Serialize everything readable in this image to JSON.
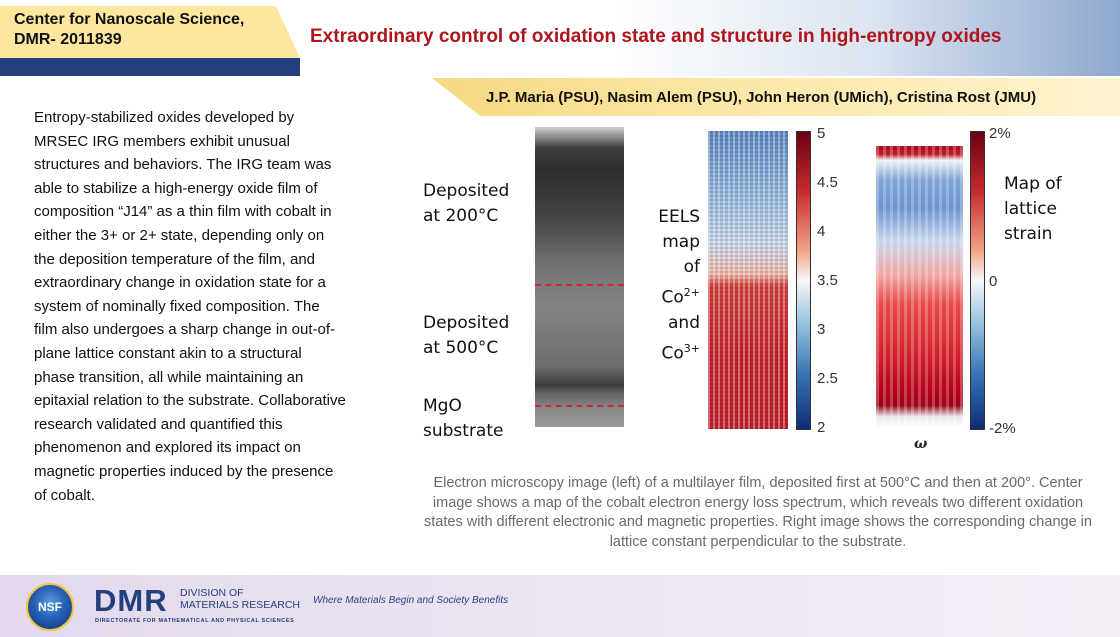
{
  "header": {
    "center_name": "Center for Nanoscale Science, DMR- 2011839",
    "title": "Extraordinary control of oxidation state and structure in high-entropy oxides",
    "authors": "J.P. Maria (PSU), Nasim Alem (PSU), John Heron (UMich), Cristina Rost (JMU)"
  },
  "body_text": "Entropy-stabilized oxides developed by MRSEC IRG members exhibit unusual structures and behaviors.  The IRG team was able to stabilize a high-energy oxide film of composition “J14” as a thin film with cobalt in either the 3+ or 2+ state, depending only on the deposition temperature of the film, and extraordinary change in oxidation state for a system of nominally fixed composition. The film also undergoes a sharp change in out-of-plane lattice constant akin to a structural phase transition, all while maintaining an epitaxial relation to the substrate.  Collaborative research validated and quantified this phenomenon and explored its impact on magnetic properties induced by the presence of cobalt.",
  "figure": {
    "stem_labels": {
      "dep200_line1": "Deposited",
      "dep200_line2": "at 200°C",
      "dep500_line1": "Deposited",
      "dep500_line2": "at 500°C",
      "mgo_line1": "MgO",
      "mgo_line2": "substrate"
    },
    "eels_label": {
      "l1": "EELS",
      "l2": "map",
      "l3": "of",
      "co": "Co",
      "co2_sup": "2+",
      "and": "and",
      "co3_sup": "3+"
    },
    "eels_colorbar_ticks": [
      "5",
      "4.5",
      "4",
      "3.5",
      "3",
      "2.5",
      "2"
    ],
    "strain_label": {
      "l1": "Map of",
      "l2": "lattice",
      "l3": "strain"
    },
    "strain_colorbar_ticks": {
      "top": "2%",
      "mid": "0",
      "bottom": "-2%"
    },
    "strain_axis_symbol": "ω",
    "colormap": {
      "high": "#b2182b",
      "mid": "#f7f7f7",
      "low": "#2166ac"
    }
  },
  "caption": "Electron microscopy image (left) of a multilayer film, deposited first at 500°C and then at 200°. Center image shows a map of the cobalt electron energy loss spectrum, which reveals two different oxidation states with different electronic and magnetic properties. Right image shows the corresponding change in lattice constant perpendicular to the substrate.",
  "footer": {
    "nsf_logo_text": "NSF",
    "dmr_mark": "DMR",
    "dmr_division_line1": "DIVISION OF",
    "dmr_division_line2": "MATERIALS RESEARCH",
    "dmr_directorate": "DIRECTORATE FOR MATHEMATICAL AND PHYSICAL SCIENCES",
    "tagline": "Where Materials Begin and Society Benefits"
  },
  "colors": {
    "title_red": "#b0141b",
    "navy": "#243f80",
    "header_yellow": "#fde79e"
  }
}
